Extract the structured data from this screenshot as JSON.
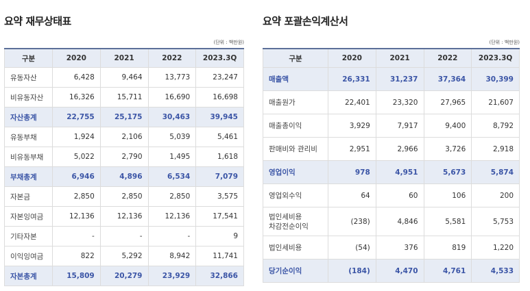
{
  "left": {
    "title": "요약 재무상태표",
    "unit": "(단위 : 백만원)",
    "headers": [
      "구분",
      "2020",
      "2021",
      "2022",
      "2023.3Q"
    ],
    "rows": [
      {
        "label": "유동자산",
        "values": [
          "6,428",
          "9,464",
          "13,773",
          "23,247"
        ],
        "highlight": false
      },
      {
        "label": "비유동자산",
        "values": [
          "16,326",
          "15,711",
          "16,690",
          "16,698"
        ],
        "highlight": false
      },
      {
        "label": "자산총계",
        "values": [
          "22,755",
          "25,175",
          "30,463",
          "39,945"
        ],
        "highlight": true
      },
      {
        "label": "유동부채",
        "values": [
          "1,924",
          "2,106",
          "5,039",
          "5,461"
        ],
        "highlight": false
      },
      {
        "label": "비유동부채",
        "values": [
          "5,022",
          "2,790",
          "1,495",
          "1,618"
        ],
        "highlight": false
      },
      {
        "label": "부채총계",
        "values": [
          "6,946",
          "4,896",
          "6,534",
          "7,079"
        ],
        "highlight": true
      },
      {
        "label": "자본금",
        "values": [
          "2,850",
          "2,850",
          "2,850",
          "3,575"
        ],
        "highlight": false
      },
      {
        "label": "자본잉여금",
        "values": [
          "12,136",
          "12,136",
          "12,136",
          "17,541"
        ],
        "highlight": false
      },
      {
        "label": "기타자본",
        "values": [
          "-",
          "-",
          "-",
          "9"
        ],
        "highlight": false
      },
      {
        "label": "이익잉여금",
        "values": [
          "822",
          "5,292",
          "8,942",
          "11,741"
        ],
        "highlight": false
      },
      {
        "label": "자본총계",
        "values": [
          "15,809",
          "20,279",
          "23,929",
          "32,866"
        ],
        "highlight": true
      }
    ]
  },
  "right": {
    "title": "요약 포괄손익계산서",
    "unit": "(단위 : 백만원)",
    "headers": [
      "구분",
      "2020",
      "2021",
      "2022",
      "2023.3Q"
    ],
    "rows": [
      {
        "label": "매출액",
        "values": [
          "26,331",
          "31,237",
          "37,364",
          "30,399"
        ],
        "highlight": true
      },
      {
        "label": "매출원가",
        "values": [
          "22,401",
          "23,320",
          "27,965",
          "21,607"
        ],
        "highlight": false
      },
      {
        "label": "매출총이익",
        "values": [
          "3,929",
          "7,917",
          "9,400",
          "8,792"
        ],
        "highlight": false
      },
      {
        "label": "판매비와 관리비",
        "values": [
          "2,951",
          "2,966",
          "3,726",
          "2,918"
        ],
        "highlight": false
      },
      {
        "label": "영업이익",
        "values": [
          "978",
          "4,951",
          "5,673",
          "5,874"
        ],
        "highlight": true
      },
      {
        "label": "영업외수익",
        "values": [
          "64",
          "60",
          "106",
          "200"
        ],
        "highlight": false
      },
      {
        "label": "법인세비용",
        "label2": "차감전순이익",
        "values": [
          "(238)",
          "4,846",
          "5,581",
          "5,753"
        ],
        "highlight": false
      },
      {
        "label": "법인세비용",
        "values": [
          "(54)",
          "376",
          "819",
          "1,220"
        ],
        "highlight": false
      },
      {
        "label": "당기순이익",
        "values": [
          "(184)",
          "4,470",
          "4,761",
          "4,533"
        ],
        "highlight": true
      }
    ]
  }
}
